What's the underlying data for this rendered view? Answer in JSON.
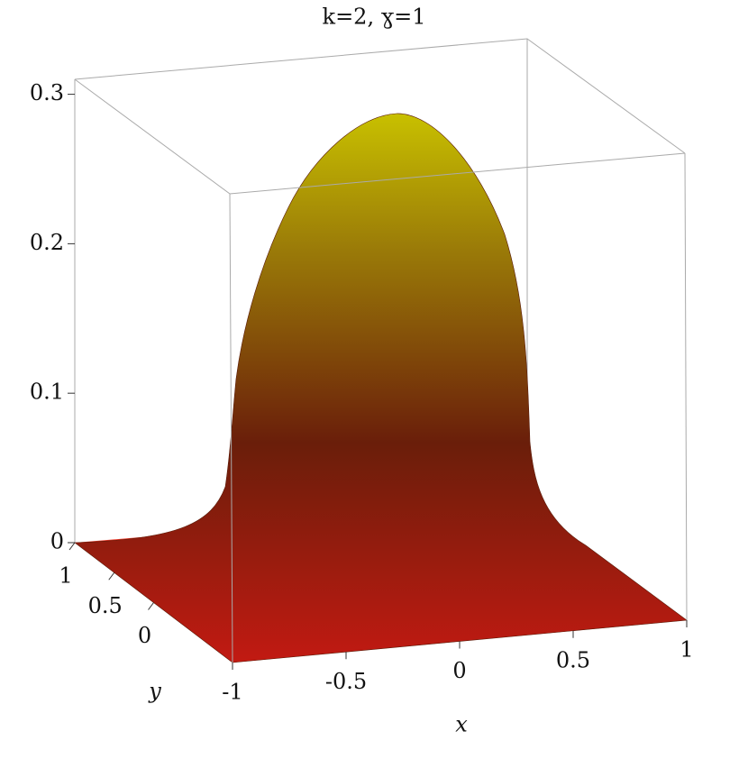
{
  "chart_data": {
    "type": "surface",
    "title": "k=2,  ɣ=1",
    "xlabel": "x",
    "ylabel": "y",
    "xlim": [
      -1,
      1
    ],
    "ylim": [
      -1,
      1
    ],
    "zlim": [
      0,
      0.31
    ],
    "xticks": [
      -1,
      -0.5,
      0,
      0.5,
      1
    ],
    "yticks": [
      0,
      0.5,
      1
    ],
    "zticks": [
      0,
      0.1,
      0.2,
      0.3
    ]
  }
}
